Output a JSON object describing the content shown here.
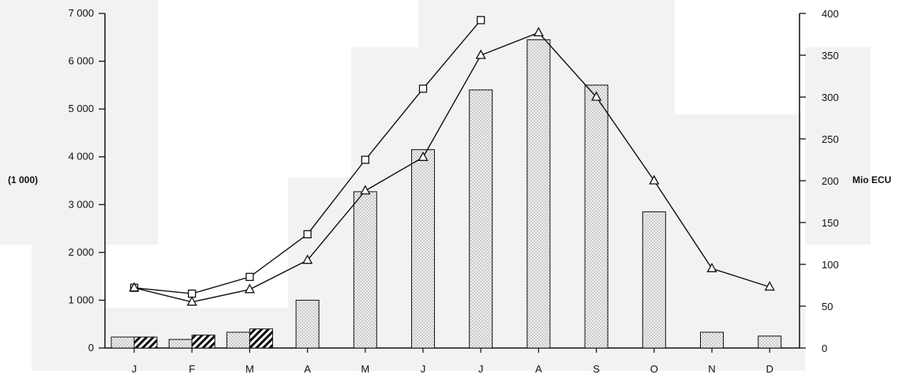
{
  "chart_data": {
    "type": "bar",
    "categories": [
      "J",
      "F",
      "M",
      "A",
      "M",
      "J",
      "J",
      "A",
      "S",
      "O",
      "N",
      "D"
    ],
    "left_axis": {
      "label": "(1 000)",
      "ylim": [
        0,
        7000
      ],
      "ticks": [
        0,
        1000,
        2000,
        3000,
        4000,
        5000,
        6000,
        7000
      ],
      "tick_labels": [
        "0",
        "1 000",
        "2 000",
        "3 000",
        "4 000",
        "5 000",
        "6 000",
        "7 000"
      ]
    },
    "right_axis": {
      "label": "Mio ECU",
      "ylim": [
        0,
        400
      ],
      "ticks": [
        0,
        50,
        100,
        150,
        200,
        250,
        300,
        350,
        400
      ],
      "tick_labels": [
        "0",
        "50",
        "100",
        "150",
        "200",
        "250",
        "300",
        "350",
        "400"
      ]
    },
    "bar_series": [
      {
        "fill": "dotted",
        "axis": "left",
        "values": [
          230,
          180,
          330,
          1000,
          3270,
          4150,
          5400,
          6450,
          5500,
          2850,
          330,
          250
        ]
      },
      {
        "fill": "hatched",
        "axis": "left",
        "values": [
          230,
          270,
          400,
          null,
          null,
          null,
          null,
          null,
          null,
          null,
          null,
          null
        ]
      }
    ],
    "line_series": [
      {
        "marker": "square",
        "axis": "right",
        "values": [
          72,
          65,
          85,
          136,
          225,
          310,
          392,
          null,
          null,
          null,
          null,
          null
        ]
      },
      {
        "marker": "triangle",
        "axis": "right",
        "values": [
          72,
          55,
          70,
          105,
          188,
          228,
          350,
          377,
          300,
          200,
          95,
          73
        ]
      }
    ],
    "grid": false,
    "colors": {
      "bar_dotted_fill": "#ececec",
      "hatch": "#111111",
      "line": "#111111"
    }
  }
}
